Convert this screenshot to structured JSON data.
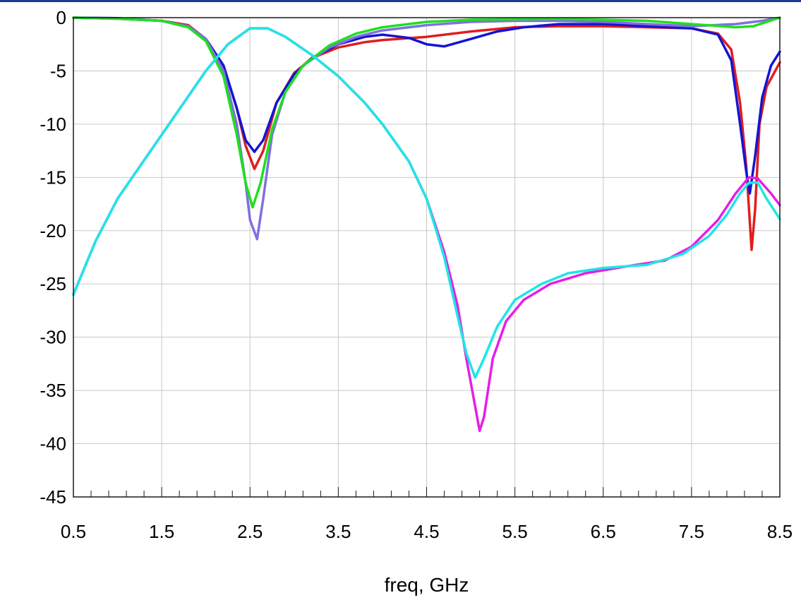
{
  "chart_data": {
    "type": "line",
    "title": "",
    "xlabel": "freq, GHz",
    "ylabel": "",
    "xlim": [
      0.5,
      8.5
    ],
    "ylim": [
      -45,
      0
    ],
    "x_ticks": [
      "0.5",
      "1.5",
      "2.5",
      "3.5",
      "4.5",
      "5.5",
      "6.5",
      "7.5",
      "8.5"
    ],
    "y_ticks": [
      "0",
      "-5",
      "-10",
      "-15",
      "-20",
      "-25",
      "-30",
      "-35",
      "-40",
      "-45"
    ],
    "grid": true,
    "colors": {
      "axis": "#1a1a1a",
      "grid": "#c8c8c8",
      "top_bar": "#1f3a93"
    },
    "series": [
      {
        "color": "#e01e1e",
        "points": [
          [
            0.5,
            0
          ],
          [
            1.0,
            -0.1
          ],
          [
            1.5,
            -0.3
          ],
          [
            1.8,
            -0.7
          ],
          [
            2.0,
            -2.0
          ],
          [
            2.2,
            -4.5
          ],
          [
            2.35,
            -8.5
          ],
          [
            2.45,
            -12.0
          ],
          [
            2.55,
            -14.2
          ],
          [
            2.65,
            -12.5
          ],
          [
            2.8,
            -8.0
          ],
          [
            3.0,
            -5.2
          ],
          [
            3.2,
            -3.8
          ],
          [
            3.5,
            -2.8
          ],
          [
            3.8,
            -2.3
          ],
          [
            4.0,
            -2.1
          ],
          [
            4.5,
            -1.8
          ],
          [
            5.0,
            -1.3
          ],
          [
            5.5,
            -0.9
          ],
          [
            6.0,
            -0.8
          ],
          [
            6.5,
            -0.8
          ],
          [
            7.0,
            -0.9
          ],
          [
            7.5,
            -1.0
          ],
          [
            7.8,
            -1.5
          ],
          [
            7.95,
            -3.0
          ],
          [
            8.05,
            -8.0
          ],
          [
            8.12,
            -14.0
          ],
          [
            8.18,
            -21.8
          ],
          [
            8.22,
            -18.0
          ],
          [
            8.27,
            -10.0
          ],
          [
            8.35,
            -6.5
          ],
          [
            8.5,
            -4.2
          ]
        ]
      },
      {
        "color": "#1414d2",
        "points": [
          [
            0.5,
            0
          ],
          [
            1.0,
            -0.05
          ],
          [
            1.5,
            -0.3
          ],
          [
            1.8,
            -0.8
          ],
          [
            2.0,
            -2.0
          ],
          [
            2.2,
            -4.5
          ],
          [
            2.35,
            -8.5
          ],
          [
            2.45,
            -11.5
          ],
          [
            2.55,
            -12.6
          ],
          [
            2.65,
            -11.5
          ],
          [
            2.8,
            -8.0
          ],
          [
            3.0,
            -5.3
          ],
          [
            3.2,
            -3.8
          ],
          [
            3.5,
            -2.5
          ],
          [
            3.8,
            -1.8
          ],
          [
            4.0,
            -1.6
          ],
          [
            4.3,
            -1.9
          ],
          [
            4.5,
            -2.5
          ],
          [
            4.7,
            -2.7
          ],
          [
            5.0,
            -2.0
          ],
          [
            5.3,
            -1.3
          ],
          [
            5.6,
            -0.9
          ],
          [
            6.0,
            -0.6
          ],
          [
            6.5,
            -0.6
          ],
          [
            7.0,
            -0.8
          ],
          [
            7.5,
            -1.0
          ],
          [
            7.8,
            -1.6
          ],
          [
            7.95,
            -4.0
          ],
          [
            8.05,
            -10.0
          ],
          [
            8.12,
            -14.5
          ],
          [
            8.16,
            -16.5
          ],
          [
            8.22,
            -13.0
          ],
          [
            8.3,
            -7.5
          ],
          [
            8.4,
            -4.5
          ],
          [
            8.5,
            -3.2
          ]
        ]
      },
      {
        "color": "#8070e0",
        "points": [
          [
            0.5,
            0
          ],
          [
            1.0,
            -0.1
          ],
          [
            1.5,
            -0.3
          ],
          [
            1.8,
            -0.8
          ],
          [
            2.0,
            -2.0
          ],
          [
            2.2,
            -5.0
          ],
          [
            2.35,
            -10.0
          ],
          [
            2.45,
            -15.5
          ],
          [
            2.5,
            -19.0
          ],
          [
            2.58,
            -20.8
          ],
          [
            2.65,
            -17.0
          ],
          [
            2.75,
            -11.0
          ],
          [
            2.9,
            -7.0
          ],
          [
            3.1,
            -4.5
          ],
          [
            3.4,
            -2.8
          ],
          [
            3.7,
            -1.8
          ],
          [
            4.0,
            -1.2
          ],
          [
            4.5,
            -0.7
          ],
          [
            5.0,
            -0.4
          ],
          [
            5.5,
            -0.3
          ],
          [
            6.0,
            -0.3
          ],
          [
            6.5,
            -0.4
          ],
          [
            7.0,
            -0.6
          ],
          [
            7.5,
            -0.8
          ],
          [
            8.0,
            -0.6
          ],
          [
            8.3,
            -0.3
          ],
          [
            8.5,
            0
          ]
        ]
      },
      {
        "color": "#1ee01e",
        "points": [
          [
            0.5,
            0
          ],
          [
            1.0,
            -0.1
          ],
          [
            1.5,
            -0.3
          ],
          [
            1.8,
            -0.9
          ],
          [
            2.0,
            -2.2
          ],
          [
            2.2,
            -5.5
          ],
          [
            2.35,
            -11.0
          ],
          [
            2.45,
            -15.5
          ],
          [
            2.53,
            -17.8
          ],
          [
            2.62,
            -15.5
          ],
          [
            2.75,
            -10.5
          ],
          [
            2.9,
            -7.0
          ],
          [
            3.1,
            -4.5
          ],
          [
            3.4,
            -2.6
          ],
          [
            3.7,
            -1.5
          ],
          [
            4.0,
            -0.9
          ],
          [
            4.5,
            -0.4
          ],
          [
            5.0,
            -0.2
          ],
          [
            6.0,
            -0.1
          ],
          [
            7.0,
            -0.3
          ],
          [
            7.5,
            -0.6
          ],
          [
            8.0,
            -0.9
          ],
          [
            8.2,
            -0.8
          ],
          [
            8.5,
            0
          ]
        ]
      },
      {
        "color": "#e61ee6",
        "points": [
          [
            0.5,
            -26.0
          ],
          [
            0.75,
            -21.0
          ],
          [
            1.0,
            -17.0
          ],
          [
            1.25,
            -14.0
          ],
          [
            1.5,
            -11.0
          ],
          [
            1.75,
            -8.0
          ],
          [
            2.0,
            -5.0
          ],
          [
            2.25,
            -2.5
          ],
          [
            2.5,
            -1.0
          ],
          [
            2.7,
            -1.0
          ],
          [
            2.9,
            -1.8
          ],
          [
            3.2,
            -3.5
          ],
          [
            3.5,
            -5.5
          ],
          [
            3.8,
            -8.0
          ],
          [
            4.0,
            -10.0
          ],
          [
            4.3,
            -13.5
          ],
          [
            4.5,
            -17.0
          ],
          [
            4.7,
            -22.0
          ],
          [
            4.85,
            -27.0
          ],
          [
            4.95,
            -32.0
          ],
          [
            5.05,
            -36.5
          ],
          [
            5.1,
            -38.8
          ],
          [
            5.15,
            -37.5
          ],
          [
            5.25,
            -32.0
          ],
          [
            5.4,
            -28.5
          ],
          [
            5.6,
            -26.5
          ],
          [
            5.9,
            -25.0
          ],
          [
            6.3,
            -24.0
          ],
          [
            6.8,
            -23.3
          ],
          [
            7.2,
            -22.8
          ],
          [
            7.5,
            -21.5
          ],
          [
            7.8,
            -19.0
          ],
          [
            8.0,
            -16.5
          ],
          [
            8.15,
            -15.0
          ],
          [
            8.25,
            -15.1
          ],
          [
            8.4,
            -16.5
          ],
          [
            8.5,
            -17.6
          ]
        ]
      },
      {
        "color": "#1ee6e6",
        "points": [
          [
            0.5,
            -26.0
          ],
          [
            0.75,
            -21.0
          ],
          [
            1.0,
            -17.0
          ],
          [
            1.25,
            -14.0
          ],
          [
            1.5,
            -11.0
          ],
          [
            1.75,
            -8.0
          ],
          [
            2.0,
            -5.0
          ],
          [
            2.25,
            -2.5
          ],
          [
            2.5,
            -1.0
          ],
          [
            2.7,
            -1.0
          ],
          [
            2.9,
            -1.8
          ],
          [
            3.2,
            -3.5
          ],
          [
            3.5,
            -5.5
          ],
          [
            3.8,
            -8.0
          ],
          [
            4.0,
            -10.0
          ],
          [
            4.3,
            -13.5
          ],
          [
            4.5,
            -17.0
          ],
          [
            4.7,
            -22.5
          ],
          [
            4.85,
            -28.0
          ],
          [
            4.95,
            -31.5
          ],
          [
            5.05,
            -33.8
          ],
          [
            5.15,
            -32.0
          ],
          [
            5.3,
            -29.0
          ],
          [
            5.5,
            -26.5
          ],
          [
            5.8,
            -25.0
          ],
          [
            6.1,
            -24.0
          ],
          [
            6.5,
            -23.5
          ],
          [
            7.0,
            -23.2
          ],
          [
            7.4,
            -22.2
          ],
          [
            7.7,
            -20.5
          ],
          [
            7.9,
            -18.5
          ],
          [
            8.05,
            -16.5
          ],
          [
            8.15,
            -15.5
          ],
          [
            8.25,
            -15.5
          ],
          [
            8.35,
            -17.0
          ],
          [
            8.5,
            -18.9
          ]
        ]
      }
    ]
  }
}
